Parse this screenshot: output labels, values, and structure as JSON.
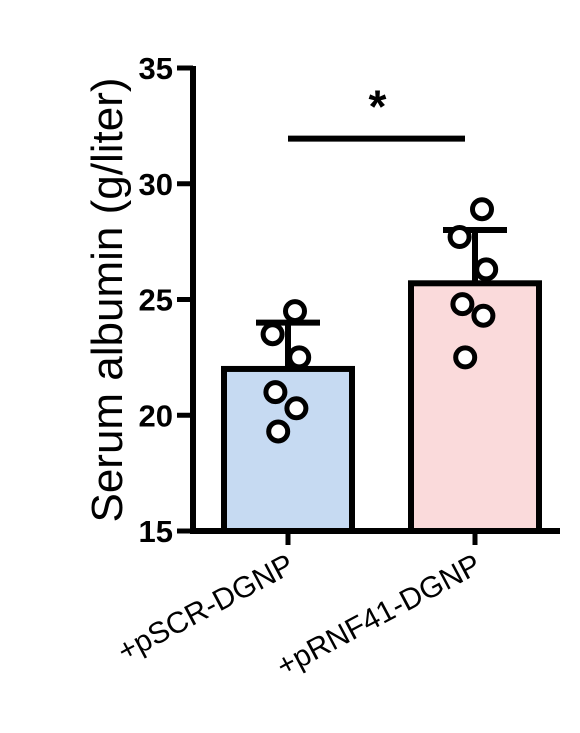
{
  "chart_data": {
    "type": "bar",
    "ylabel": "Serum albumin (g/liter)",
    "xlabel": "",
    "ylim": [
      15,
      35
    ],
    "yticks": [
      15,
      20,
      25,
      30,
      35
    ],
    "categories": [
      "+pSCR-DGNP",
      "+pRNF41-DGNP"
    ],
    "values": [
      22.0,
      25.7
    ],
    "errors": [
      2.0,
      2.3
    ],
    "bar_colors": [
      "#c6daf2",
      "#fadadb"
    ],
    "points": [
      [
        24.5,
        23.5,
        22.5,
        21.0,
        20.3,
        19.3
      ],
      [
        28.9,
        27.7,
        26.3,
        24.8,
        24.3,
        22.5
      ]
    ],
    "significance": {
      "label": "*",
      "between": [
        0,
        1
      ],
      "y": 31.0
    },
    "grid": false,
    "legend": "none"
  }
}
